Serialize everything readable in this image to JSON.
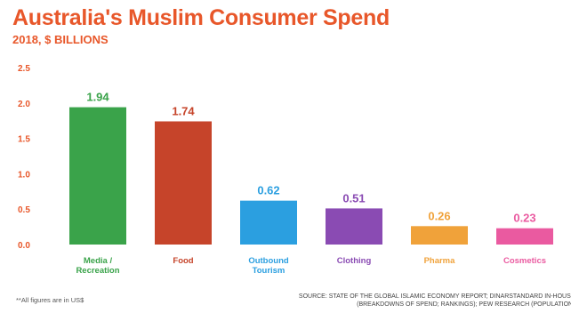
{
  "header": {
    "title": "Australia's Muslim Consumer Spend",
    "subtitle": "2018, $ BILLIONS"
  },
  "footer": {
    "note": "**All figures are in US$",
    "source_line1": "SOURCE: STATE OF THE GLOBAL ISLAMIC ECONOMY REPORT; DINARSTANDARD IN-HOUSE DATA",
    "source_line2": "(BREAKDOWNS OF SPEND; RANKINGS); PEW RESEARCH (POPULATION DATA)"
  },
  "chart_data": {
    "type": "bar",
    "title": "Australia's Muslim Consumer Spend",
    "subtitle": "2018, $ BILLIONS",
    "categories": [
      "Media /\nRecreation",
      "Food",
      "Outbound\nTourism",
      "Clothing",
      "Pharma",
      "Cosmetics"
    ],
    "values": [
      1.94,
      1.74,
      0.62,
      0.51,
      0.26,
      0.23
    ],
    "value_labels": [
      "1.94",
      "1.74",
      "0.62",
      "0.51",
      "0.26",
      "0.23"
    ],
    "colors": [
      "#3aa34a",
      "#c6442a",
      "#2b9fe0",
      "#8a4bb3",
      "#f0a23a",
      "#ea5aa0"
    ],
    "yticks": [
      "0.0",
      "0.5",
      "1.0",
      "1.5",
      "2.0",
      "2.5"
    ],
    "ytick_values": [
      0,
      0.5,
      1.0,
      1.5,
      2.0,
      2.5
    ],
    "ylim": [
      0,
      2.5
    ],
    "xlabel": "",
    "ylabel": "",
    "grid": false,
    "legend": "none"
  }
}
